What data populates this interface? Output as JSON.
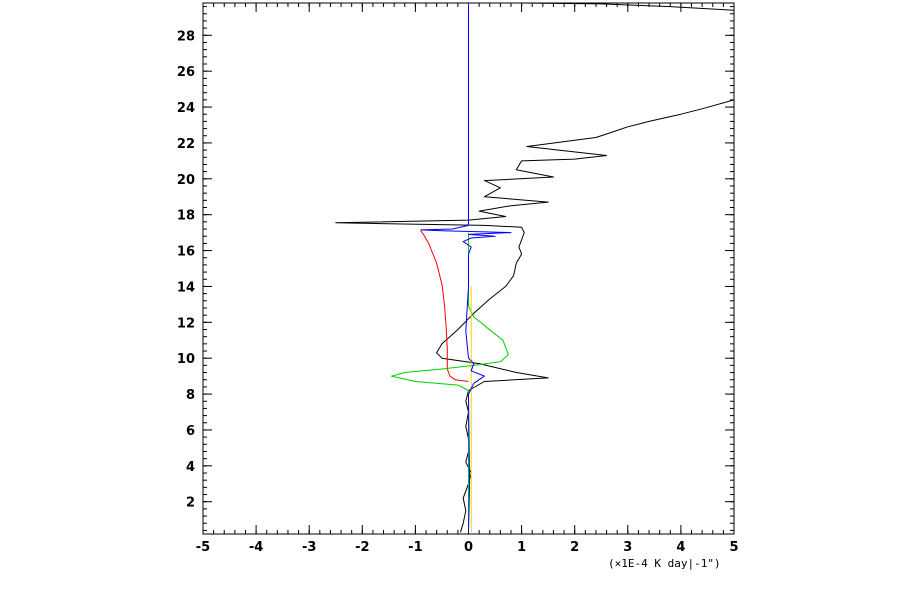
{
  "chart_data": {
    "type": "line",
    "title": "",
    "xlabel": "",
    "ylabel": "",
    "x_unit_label": "(×1E-4 K day|-1\")",
    "xlim": [
      -5,
      5
    ],
    "ylim": [
      0.2,
      29.8
    ],
    "x_ticks": [
      -5,
      -4,
      -3,
      -2,
      -1,
      0,
      1,
      2,
      3,
      4,
      5
    ],
    "y_ticks": [
      2,
      4,
      6,
      8,
      10,
      12,
      14,
      16,
      18,
      20,
      22,
      24,
      26,
      28
    ],
    "x_minor_step": 0.2,
    "y_minor_step": 0.4,
    "grid": false,
    "series": [
      {
        "color": "#000000",
        "points": [
          [
            -0.15,
            0.3
          ],
          [
            -0.1,
            0.8
          ],
          [
            -0.05,
            1.5
          ],
          [
            -0.1,
            2.2
          ],
          [
            0.0,
            3.0
          ],
          [
            0.05,
            3.6
          ],
          [
            -0.05,
            4.2
          ],
          [
            0.0,
            4.8
          ],
          [
            0.0,
            5.5
          ],
          [
            -0.05,
            6.2
          ],
          [
            0.0,
            7.0
          ],
          [
            -0.05,
            7.6
          ],
          [
            0.0,
            8.2
          ],
          [
            0.3,
            8.7
          ],
          [
            1.5,
            8.9
          ],
          [
            0.9,
            9.2
          ],
          [
            0.2,
            9.7
          ],
          [
            -0.5,
            10.0
          ],
          [
            -0.6,
            10.3
          ],
          [
            -0.5,
            10.8
          ],
          [
            -0.2,
            11.6
          ],
          [
            0.1,
            12.5
          ],
          [
            0.4,
            13.3
          ],
          [
            0.7,
            14.0
          ],
          [
            0.85,
            14.6
          ],
          [
            0.9,
            15.3
          ],
          [
            1.0,
            15.8
          ],
          [
            0.95,
            16.2
          ],
          [
            1.0,
            16.6
          ],
          [
            1.05,
            17.0
          ],
          [
            1.0,
            17.3
          ],
          [
            0.3,
            17.4
          ],
          [
            -2.5,
            17.55
          ],
          [
            0.0,
            17.7
          ],
          [
            0.7,
            17.9
          ],
          [
            0.2,
            18.2
          ],
          [
            0.8,
            18.5
          ],
          [
            1.5,
            18.7
          ],
          [
            0.3,
            19.0
          ],
          [
            0.6,
            19.5
          ],
          [
            0.3,
            19.9
          ],
          [
            1.6,
            20.1
          ],
          [
            0.9,
            20.5
          ],
          [
            1.0,
            21.0
          ],
          [
            2.0,
            21.1
          ],
          [
            2.6,
            21.3
          ],
          [
            1.7,
            21.6
          ],
          [
            1.1,
            21.8
          ],
          [
            2.4,
            22.3
          ],
          [
            2.6,
            22.5
          ],
          [
            3.0,
            22.9
          ],
          [
            3.4,
            23.2
          ],
          [
            4.0,
            23.6
          ],
          [
            4.4,
            23.9
          ],
          [
            5.0,
            24.4
          ]
        ]
      },
      {
        "color": "#000000",
        "points": [
          [
            1.0,
            29.8
          ],
          [
            2.5,
            29.75
          ],
          [
            3.8,
            29.6
          ],
          [
            5.0,
            29.4
          ]
        ]
      },
      {
        "color": "#ff0000",
        "points": [
          [
            0.0,
            8.7
          ],
          [
            -0.25,
            8.8
          ],
          [
            -0.35,
            9.0
          ],
          [
            -0.4,
            9.4
          ],
          [
            -0.4,
            10.5
          ],
          [
            -0.42,
            11.7
          ],
          [
            -0.45,
            12.9
          ],
          [
            -0.5,
            14.1
          ],
          [
            -0.6,
            15.3
          ],
          [
            -0.75,
            16.4
          ],
          [
            -0.85,
            16.9
          ],
          [
            -0.9,
            17.1
          ]
        ]
      },
      {
        "color": "#00d000",
        "points": [
          [
            0.0,
            0.3
          ],
          [
            0.0,
            8.2
          ],
          [
            -0.2,
            8.5
          ],
          [
            -1.0,
            8.7
          ],
          [
            -1.45,
            9.0
          ],
          [
            -1.2,
            9.2
          ],
          [
            -0.5,
            9.4
          ],
          [
            0.1,
            9.6
          ],
          [
            0.6,
            9.8
          ],
          [
            0.75,
            10.2
          ],
          [
            0.65,
            11.0
          ],
          [
            0.35,
            11.7
          ],
          [
            0.1,
            12.3
          ],
          [
            0.0,
            12.9
          ],
          [
            0.0,
            17.0
          ]
        ]
      },
      {
        "color": "#ffd000",
        "points": [
          [
            0.05,
            0.3
          ],
          [
            0.05,
            8.0
          ],
          [
            0.05,
            9.0
          ],
          [
            0.05,
            14.0
          ]
        ]
      },
      {
        "color": "#0000ff",
        "points": [
          [
            0.0,
            0.3
          ],
          [
            0.02,
            3.0
          ],
          [
            0.0,
            8.0
          ],
          [
            0.1,
            8.6
          ],
          [
            0.3,
            9.0
          ],
          [
            0.05,
            9.3
          ],
          [
            0.1,
            9.7
          ],
          [
            0.0,
            10.0
          ],
          [
            -0.05,
            11.5
          ],
          [
            0.0,
            14.0
          ],
          [
            0.0,
            15.8
          ],
          [
            0.05,
            16.2
          ],
          [
            -0.1,
            16.5
          ],
          [
            0.05,
            16.7
          ],
          [
            0.5,
            16.8
          ],
          [
            0.0,
            16.9
          ],
          [
            0.8,
            17.0
          ],
          [
            -0.5,
            17.1
          ],
          [
            -0.9,
            17.15
          ],
          [
            -0.3,
            17.2
          ],
          [
            0.0,
            17.4
          ],
          [
            0.0,
            29.8
          ]
        ]
      }
    ]
  }
}
